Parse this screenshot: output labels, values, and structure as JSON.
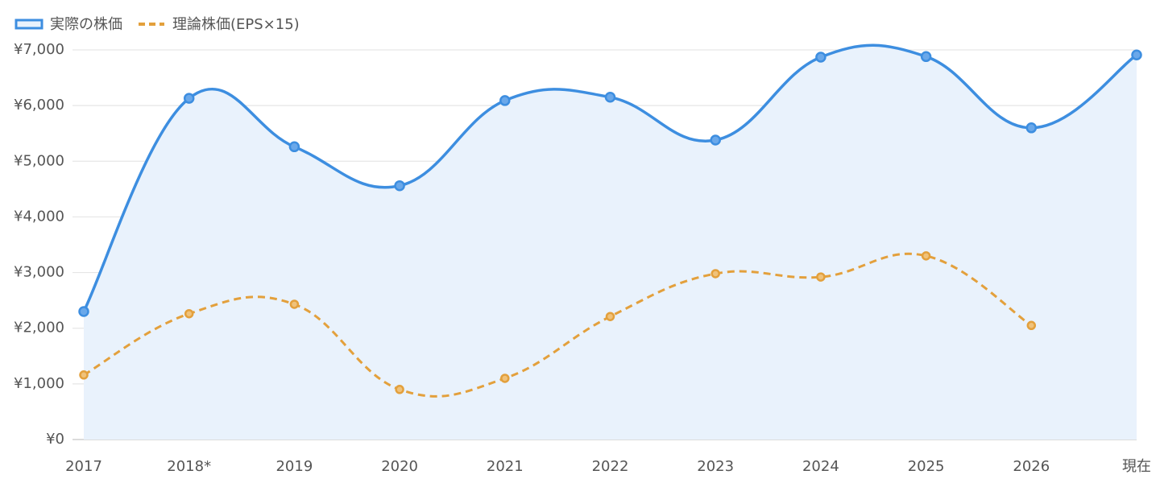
{
  "chart_data": {
    "type": "line",
    "categories": [
      "2017",
      "2018*",
      "2019",
      "2020",
      "2021",
      "2022",
      "2023",
      "2024",
      "2025",
      "2026",
      "現在"
    ],
    "series": [
      {
        "name": "実際の株価",
        "color": "#3d8ee0",
        "fill": "#e9f2fc",
        "dash": false,
        "values": [
          2300,
          6130,
          5260,
          4560,
          6090,
          6150,
          5380,
          6870,
          6880,
          5600,
          6910
        ]
      },
      {
        "name": "理論株価(EPS×15)",
        "color": "#e3a03c",
        "dash": true,
        "values": [
          1160,
          2260,
          2430,
          900,
          1100,
          2210,
          2980,
          2920,
          3300,
          2050,
          null
        ]
      }
    ],
    "ylim": [
      0,
      7000
    ],
    "yticks": [
      {
        "value": 0,
        "label": "¥0"
      },
      {
        "value": 1000,
        "label": "¥1,000"
      },
      {
        "value": 2000,
        "label": "¥2,000"
      },
      {
        "value": 3000,
        "label": "¥3,000"
      },
      {
        "value": 4000,
        "label": "¥4,000"
      },
      {
        "value": 5000,
        "label": "¥5,000"
      },
      {
        "value": 6000,
        "label": "¥6,000"
      },
      {
        "value": 7000,
        "label": "¥7,000"
      }
    ],
    "grid": true
  }
}
